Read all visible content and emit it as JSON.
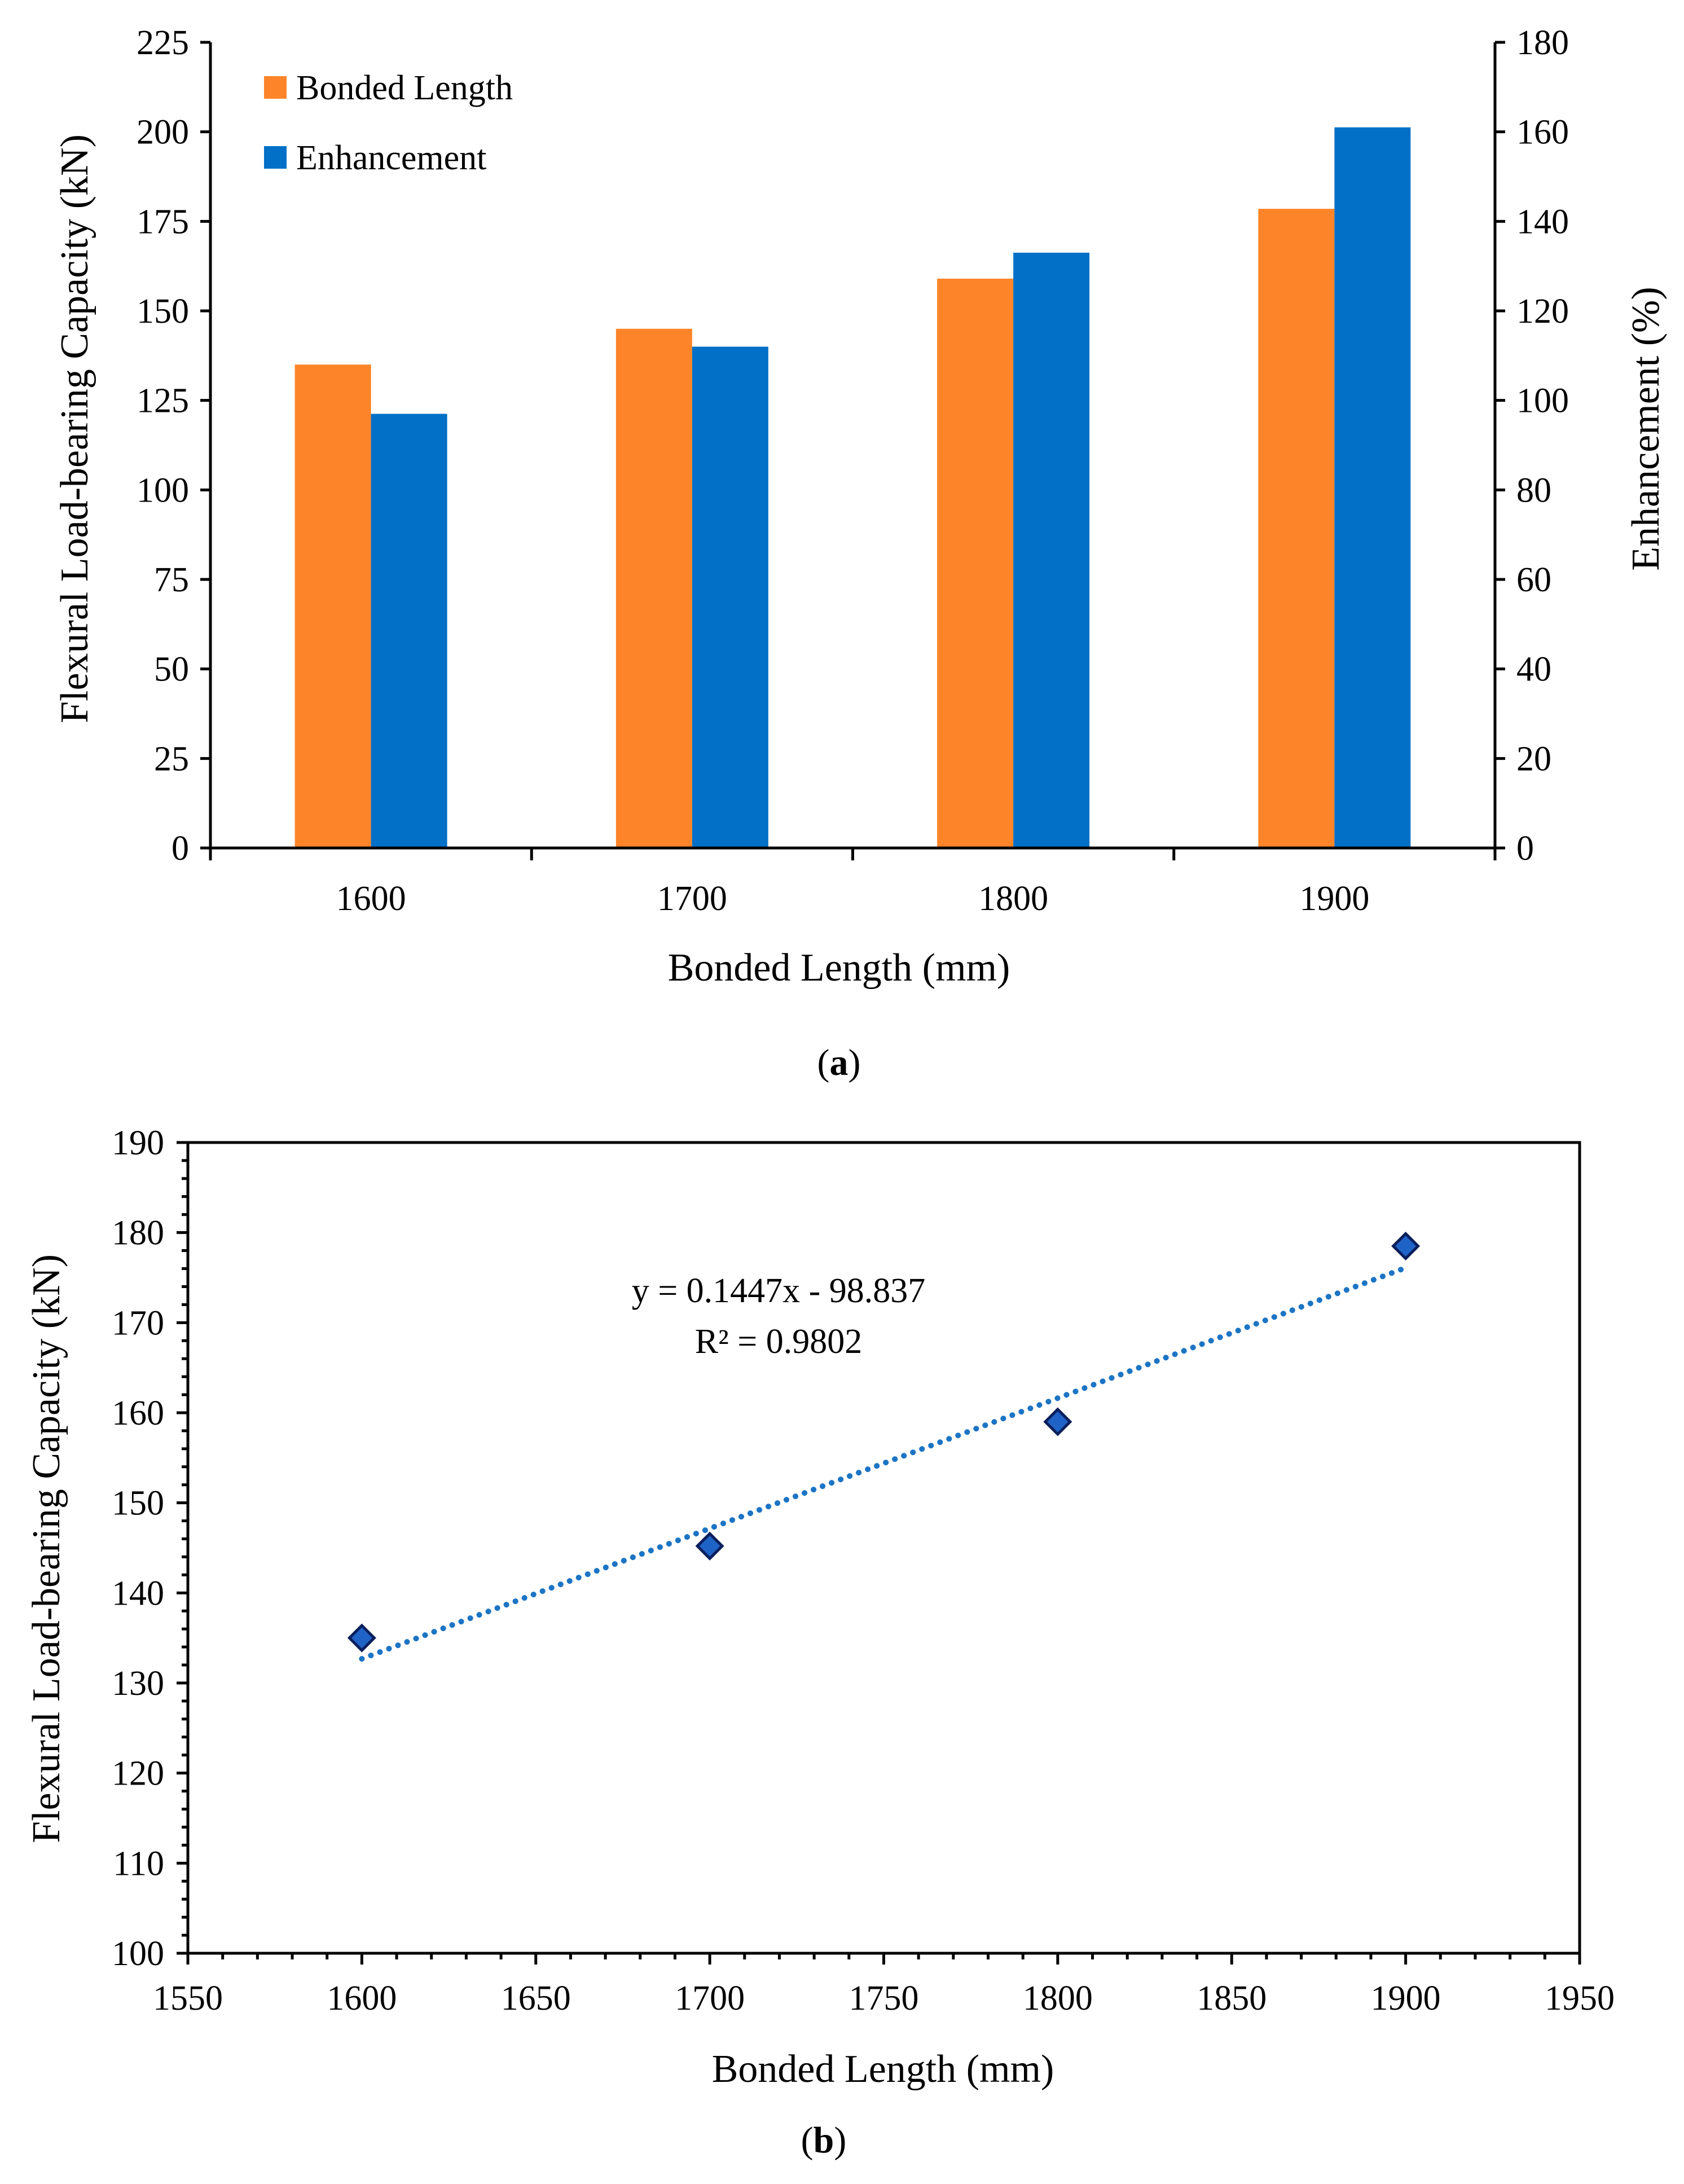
{
  "colors": {
    "bonded": "#FD8428",
    "enhancement": "#0270C7",
    "trendline": "#1C74C4",
    "marker_fill": "#1F63C6",
    "marker_edge": "#0A1F5C",
    "axis": "#000000"
  },
  "chart_data": [
    {
      "type": "bar",
      "panel": "a",
      "caption": {
        "open": "(",
        "letter": "a",
        "close": ")"
      },
      "categories": [
        "1600",
        "1700",
        "1800",
        "1900"
      ],
      "series": [
        {
          "name": "Bonded Length",
          "axis": "left",
          "values": [
            135,
            145,
            159,
            178.5
          ]
        },
        {
          "name": "Enhancement",
          "axis": "right",
          "values": [
            97,
            112,
            133,
            161
          ]
        }
      ],
      "xlabel": "Bonded Length (mm)",
      "ylabel": "Flexural Load-bearing Capacity (kN)",
      "y2label": "Enhancement (%)",
      "ylim": [
        0,
        225
      ],
      "yticks": [
        0,
        25,
        50,
        75,
        100,
        125,
        150,
        175,
        200,
        225
      ],
      "y2lim": [
        0,
        180
      ],
      "y2ticks": [
        0,
        20,
        40,
        60,
        80,
        100,
        120,
        140,
        160,
        180
      ],
      "legend": "top-left"
    },
    {
      "type": "scatter",
      "panel": "b",
      "caption": {
        "open": "(",
        "letter": "b",
        "close": ")"
      },
      "x": [
        1600,
        1700,
        1800,
        1900
      ],
      "y": [
        135,
        145.2,
        159,
        178.5
      ],
      "trendline": {
        "slope": 0.1447,
        "intercept": -98.837,
        "equation": "y = 0.1447x - 98.837",
        "r2": "R² = 0.9802",
        "style": "dotted"
      },
      "xlabel": "Bonded Length (mm)",
      "ylabel": "Flexural Load-bearing Capacity (kN)",
      "xlim": [
        1550,
        1950
      ],
      "xticks": [
        1550,
        1600,
        1650,
        1700,
        1750,
        1800,
        1850,
        1900,
        1950
      ],
      "ylim": [
        100,
        190
      ],
      "yticks": [
        100,
        110,
        120,
        130,
        140,
        150,
        160,
        170,
        180,
        190
      ]
    }
  ]
}
